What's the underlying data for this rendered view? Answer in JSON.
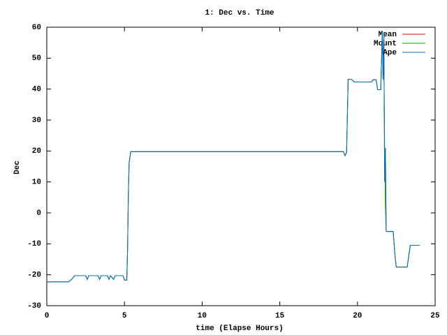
{
  "chart_data": {
    "type": "line",
    "title": "1: Dec vs. Time",
    "x_label": "time (Elapse Hours)",
    "y_label": "Dec",
    "xlim": [
      0,
      25
    ],
    "xticks": [
      0,
      5,
      10,
      15,
      20,
      25
    ],
    "ylim": [
      -30,
      60
    ],
    "yticks": [
      -30,
      -20,
      -10,
      0,
      10,
      20,
      30,
      40,
      50,
      60
    ],
    "legend": "top-right",
    "x": [
      0,
      1.4,
      1.6,
      1.8,
      2.5,
      2.6,
      2.7,
      3.3,
      3.4,
      3.5,
      3.9,
      4.0,
      4.1,
      4.3,
      4.4,
      4.9,
      5.0,
      5.15,
      5.2,
      5.25,
      5.3,
      5.4,
      19.1,
      19.2,
      19.3,
      19.4,
      19.6,
      19.8,
      20.9,
      21.0,
      21.2,
      21.3,
      21.5,
      21.6,
      21.65,
      21.7,
      21.75,
      21.8,
      21.85,
      22.3,
      22.4,
      22.5,
      23.2,
      23.4,
      24.0
    ],
    "series": [
      {
        "name": "Mean",
        "color": "#ff0000",
        "values": [
          -22.3,
          -22.3,
          -21.5,
          -20.3,
          -20.3,
          -21.5,
          -20.3,
          -20.3,
          -21.5,
          -20.3,
          -20.3,
          -21.5,
          -20.3,
          -21.5,
          -20.3,
          -20.3,
          -21.7,
          -21.7,
          -12,
          6,
          16,
          19.8,
          19.8,
          18.5,
          19.5,
          43.2,
          43.2,
          42.3,
          42.3,
          43,
          43,
          39.8,
          39.8,
          58.8,
          43,
          58,
          10,
          21,
          -6,
          -6,
          -13,
          -17.5,
          -17.5,
          -10.5,
          -10.5
        ]
      },
      {
        "name": "Mount",
        "color": "#00a000",
        "values": [
          -22.3,
          -22.3,
          -21.5,
          -20.3,
          -20.3,
          -21.5,
          -20.3,
          -20.3,
          -21.5,
          -20.3,
          -20.3,
          -21.5,
          -20.3,
          -21.5,
          -20.3,
          -20.3,
          -21.7,
          -21.7,
          -12,
          6,
          16,
          19.8,
          19.8,
          18.5,
          19.5,
          43.2,
          43.2,
          42.3,
          42.3,
          43,
          43,
          39.8,
          39.8,
          58.8,
          43,
          50,
          21,
          2,
          -6,
          -6,
          -13,
          -17.5,
          -17.5,
          -10.5,
          -10.5
        ]
      },
      {
        "name": "Ape",
        "color": "#0070c0",
        "values": [
          -22.3,
          -22.3,
          -21.5,
          -20.3,
          -20.3,
          -21.5,
          -20.3,
          -20.3,
          -21.5,
          -20.3,
          -20.3,
          -21.5,
          -20.3,
          -21.5,
          -20.3,
          -20.3,
          -21.7,
          -21.7,
          -12,
          6,
          16,
          19.8,
          19.8,
          18.5,
          19.5,
          43.2,
          43.2,
          42.3,
          42.3,
          43,
          43,
          39.8,
          39.8,
          58.8,
          43,
          58,
          10,
          21,
          -6,
          -6,
          -13,
          -17.5,
          -17.5,
          -10.5,
          -10.5
        ]
      }
    ]
  }
}
